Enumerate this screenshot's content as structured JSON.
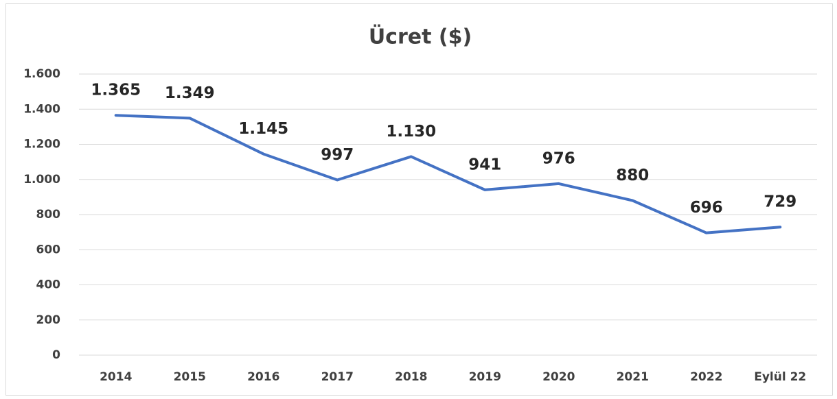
{
  "chart_data": {
    "type": "line",
    "title": "Ücret ($)",
    "categories": [
      "2014",
      "2015",
      "2016",
      "2017",
      "2018",
      "2019",
      "2020",
      "2021",
      "2022",
      "Eylül 22"
    ],
    "values": [
      1365,
      1349,
      1145,
      997,
      1130,
      941,
      976,
      880,
      696,
      729
    ],
    "value_labels": [
      "1.365",
      "1.349",
      "1.145",
      "997",
      "1.130",
      "941",
      "976",
      "880",
      "696",
      "729"
    ],
    "color": "#4472c4",
    "ylim": [
      0,
      1600
    ],
    "yticks": [
      0,
      200,
      400,
      600,
      800,
      {
        "value": 1000,
        "label": "1.000"
      },
      {
        "value": 1200,
        "label": "1.200"
      },
      {
        "value": 1400,
        "label": "1.400"
      },
      {
        "value": 1600,
        "label": "1.600"
      }
    ],
    "grid": true
  }
}
